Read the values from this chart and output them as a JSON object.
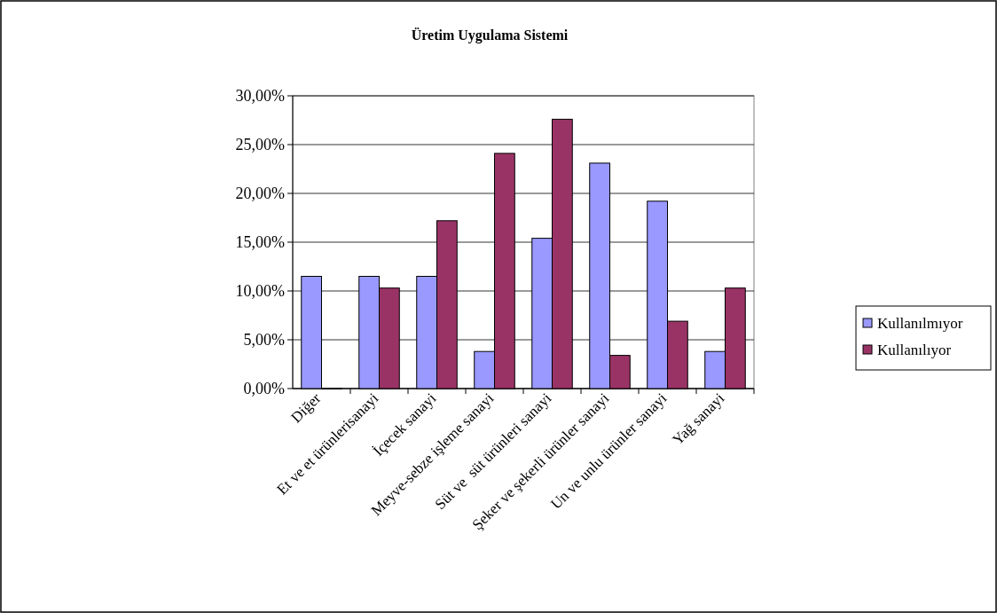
{
  "chart_data": {
    "type": "bar",
    "title": "Üretim Uygulama Sistemi",
    "categories": [
      "Diğer",
      "Et ve et ürünlerisanayi",
      "İçecek sanayi",
      "Meyve-sebze işleme sanayi",
      "Süt ve  süt ürünleri sanayi",
      "Şeker ve şekerli ürünler sanayi",
      "Un ve unlu ürünler sanayi",
      "Yağ sanayi"
    ],
    "series": [
      {
        "name": "Kullanılmıyor",
        "color": "#9999ff",
        "values": [
          11.5,
          11.5,
          11.5,
          3.8,
          15.4,
          23.1,
          19.2,
          3.8
        ]
      },
      {
        "name": "Kullanılıyor",
        "color": "#993366",
        "values": [
          0,
          10.3,
          17.2,
          24.1,
          27.6,
          3.4,
          6.9,
          10.3
        ]
      }
    ],
    "ylim": [
      0,
      30
    ],
    "yticks": [
      {
        "value": 0,
        "label": "0,00%"
      },
      {
        "value": 5,
        "label": "5,00%"
      },
      {
        "value": 10,
        "label": "10,00%"
      },
      {
        "value": 15,
        "label": "15,00%"
      },
      {
        "value": 20,
        "label": "20,00%"
      },
      {
        "value": 25,
        "label": "25,00%"
      },
      {
        "value": 30,
        "label": "30,00%"
      }
    ],
    "grid": "y",
    "legend": "right"
  }
}
